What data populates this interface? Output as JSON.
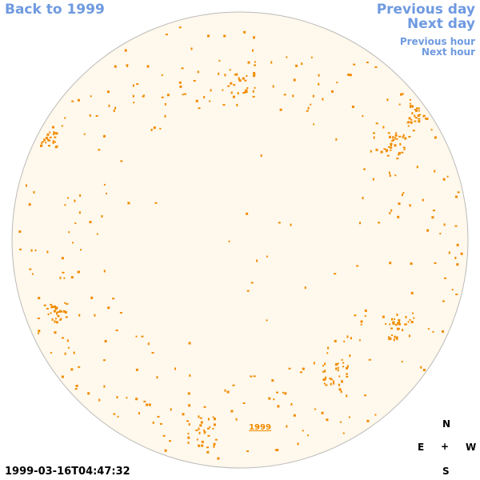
{
  "nav": {
    "back": "Back to 1999",
    "previous_day": "Previous day",
    "next_day": "Next day",
    "previous_hour": "Previous hour",
    "next_hour": "Next hour"
  },
  "sky_label": "1999",
  "compass": {
    "north": "N",
    "south": "S",
    "east": "E",
    "west": "W",
    "center": "+"
  },
  "timestamp": "1999-03-16T04:47:32",
  "colors": {
    "link": "#6f9ae0",
    "disk_fill": "#fff8ec",
    "disk_stroke": "#bbbbbb",
    "mark": "#f08c00"
  }
}
